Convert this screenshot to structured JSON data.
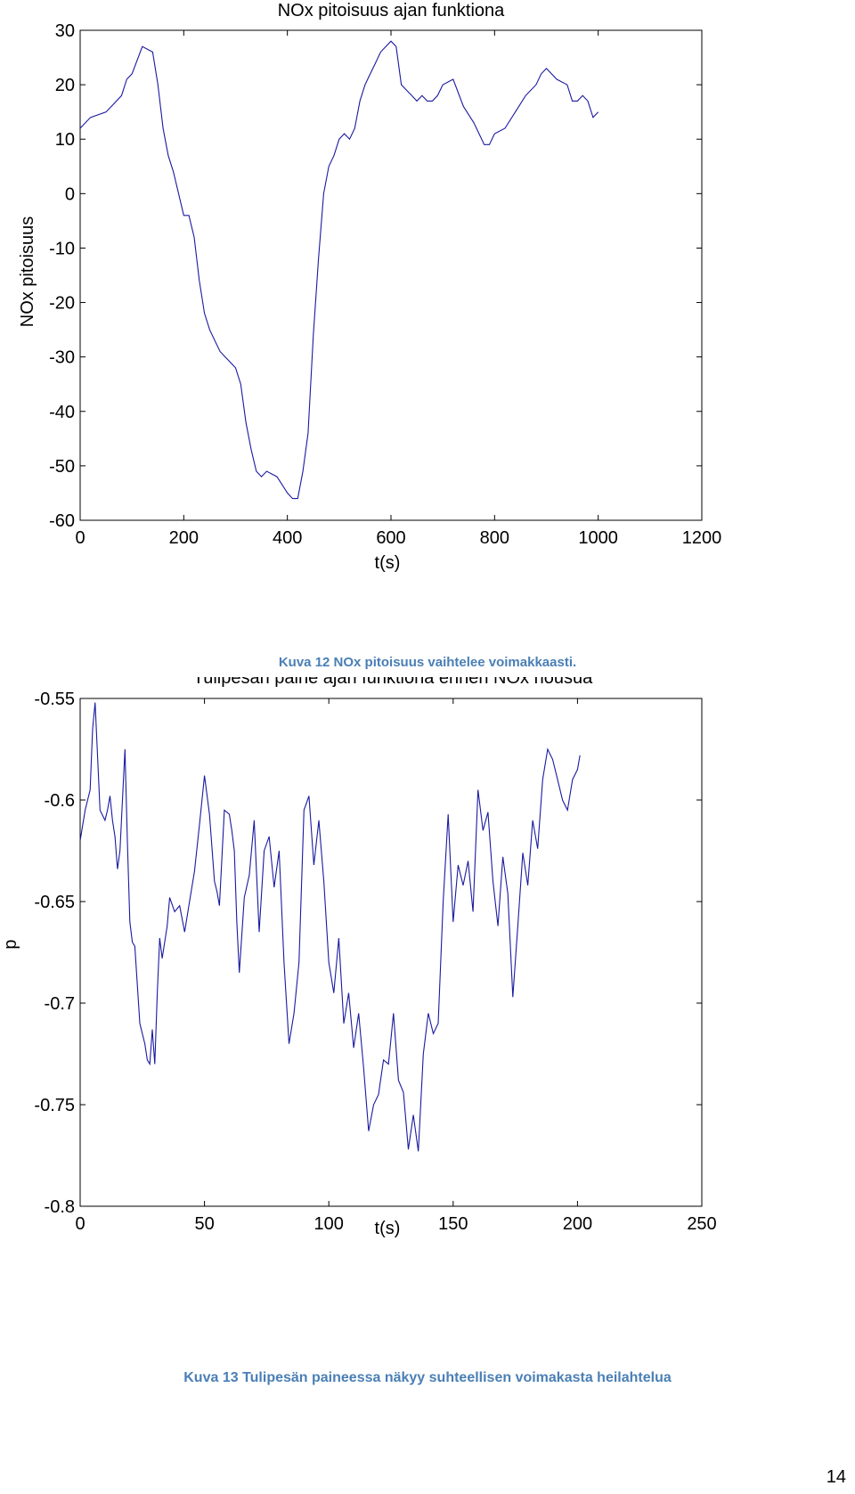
{
  "chart_data": [
    {
      "type": "line",
      "title": "NOx pitoisuus ajan funktiona",
      "xlabel": "t(s)",
      "ylabel": "NOx pitoisuus",
      "xlim": [
        0,
        1200
      ],
      "ylim": [
        -60,
        30
      ],
      "xticks": [
        0,
        200,
        400,
        600,
        800,
        1000,
        1200
      ],
      "yticks": [
        30,
        20,
        10,
        0,
        -10,
        -20,
        -30,
        -40,
        -50,
        -60
      ],
      "grid": false,
      "color": "#1a1aa0",
      "series": [
        {
          "x": [
            0,
            20,
            50,
            80,
            90,
            100,
            120,
            140,
            150,
            160,
            170,
            180,
            190,
            200,
            210,
            220,
            230,
            240,
            250,
            260,
            270,
            280,
            290,
            300,
            310,
            320,
            330,
            340,
            350,
            360,
            380,
            400,
            410,
            420,
            430,
            440,
            450,
            460,
            470,
            480,
            490,
            500,
            510,
            520,
            530,
            540,
            550,
            560,
            570,
            580,
            590,
            600,
            610,
            620,
            640,
            650,
            660,
            670,
            680,
            690,
            700,
            720,
            740,
            760,
            770,
            780,
            790,
            800,
            820,
            840,
            860,
            880,
            890,
            900,
            920,
            940,
            950,
            960,
            970,
            980,
            990,
            1000
          ],
          "y": [
            12,
            14,
            15,
            18,
            21,
            22,
            27,
            26,
            20,
            12,
            7,
            4,
            0,
            -4,
            -4,
            -8,
            -16,
            -22,
            -25,
            -27,
            -29,
            -30,
            -31,
            -32,
            -35,
            -42,
            -47,
            -51,
            -52,
            -51,
            -52,
            -55,
            -56,
            -56,
            -51,
            -44,
            -26,
            -12,
            0,
            5,
            7,
            10,
            11,
            10,
            12,
            17,
            20,
            22,
            24,
            26,
            27,
            28,
            27,
            20,
            18,
            17,
            18,
            17,
            17,
            18,
            20,
            21,
            16,
            13,
            11,
            9,
            9,
            11,
            12,
            15,
            18,
            20,
            22,
            23,
            21,
            20,
            17,
            17,
            18,
            17,
            14,
            15
          ]
        }
      ]
    },
    {
      "type": "line",
      "title": "Tulipesän paine ajan funktiona ennen NOx nousua",
      "xlabel": "t(s)",
      "ylabel": "p",
      "xlim": [
        0,
        250
      ],
      "ylim": [
        -0.8,
        -0.55
      ],
      "xticks": [
        0,
        50,
        100,
        150,
        200,
        250
      ],
      "yticks": [
        -0.55,
        -0.6,
        -0.65,
        -0.7,
        -0.75,
        -0.8
      ],
      "grid": false,
      "color": "#1a1aa0",
      "series": [
        {
          "x": [
            0,
            2,
            4,
            5,
            6,
            8,
            10,
            11,
            12,
            13,
            14,
            15,
            16,
            18,
            19,
            20,
            21,
            22,
            24,
            26,
            27,
            28,
            29,
            30,
            31,
            32,
            33,
            35,
            36,
            38,
            40,
            42,
            44,
            46,
            48,
            50,
            52,
            54,
            55,
            56,
            58,
            60,
            61,
            62,
            63,
            64,
            66,
            68,
            70,
            72,
            74,
            76,
            78,
            80,
            82,
            84,
            86,
            88,
            90,
            92,
            94,
            96,
            98,
            100,
            102,
            104,
            106,
            108,
            110,
            112,
            114,
            116,
            118,
            120,
            122,
            124,
            126,
            128,
            130,
            132,
            134,
            136,
            138,
            140,
            142,
            144,
            146,
            148,
            150,
            152,
            154,
            156,
            158,
            160,
            162,
            164,
            166,
            168,
            170,
            172,
            174,
            176,
            178,
            180,
            182,
            184,
            186,
            188,
            190,
            192,
            194,
            196,
            198,
            200,
            201
          ],
          "y": [
            -0.62,
            -0.605,
            -0.595,
            -0.565,
            -0.552,
            -0.605,
            -0.61,
            -0.605,
            -0.598,
            -0.61,
            -0.618,
            -0.634,
            -0.625,
            -0.575,
            -0.62,
            -0.66,
            -0.67,
            -0.672,
            -0.71,
            -0.72,
            -0.728,
            -0.73,
            -0.713,
            -0.73,
            -0.695,
            -0.668,
            -0.678,
            -0.662,
            -0.648,
            -0.655,
            -0.652,
            -0.665,
            -0.65,
            -0.635,
            -0.612,
            -0.588,
            -0.607,
            -0.64,
            -0.645,
            -0.652,
            -0.605,
            -0.607,
            -0.615,
            -0.625,
            -0.66,
            -0.685,
            -0.648,
            -0.637,
            -0.61,
            -0.665,
            -0.625,
            -0.618,
            -0.643,
            -0.625,
            -0.68,
            -0.72,
            -0.705,
            -0.68,
            -0.605,
            -0.598,
            -0.632,
            -0.61,
            -0.64,
            -0.68,
            -0.695,
            -0.668,
            -0.71,
            -0.695,
            -0.722,
            -0.705,
            -0.732,
            -0.763,
            -0.75,
            -0.745,
            -0.728,
            -0.73,
            -0.705,
            -0.738,
            -0.744,
            -0.772,
            -0.755,
            -0.773,
            -0.725,
            -0.705,
            -0.715,
            -0.71,
            -0.65,
            -0.607,
            -0.66,
            -0.632,
            -0.642,
            -0.63,
            -0.655,
            -0.595,
            -0.615,
            -0.606,
            -0.64,
            -0.662,
            -0.628,
            -0.646,
            -0.697,
            -0.662,
            -0.626,
            -0.642,
            -0.61,
            -0.624,
            -0.59,
            -0.575,
            -0.58,
            -0.59,
            -0.6,
            -0.605,
            -0.59,
            -0.585,
            -0.578
          ]
        }
      ]
    }
  ],
  "captions": {
    "fig12": "Kuva 12 NOx pitoisuus vaihtelee voimakkaasti.",
    "fig13": "Kuva 13 Tulipesän paineessa näkyy suhteellisen voimakasta heilahtelua"
  },
  "page_number": "14"
}
